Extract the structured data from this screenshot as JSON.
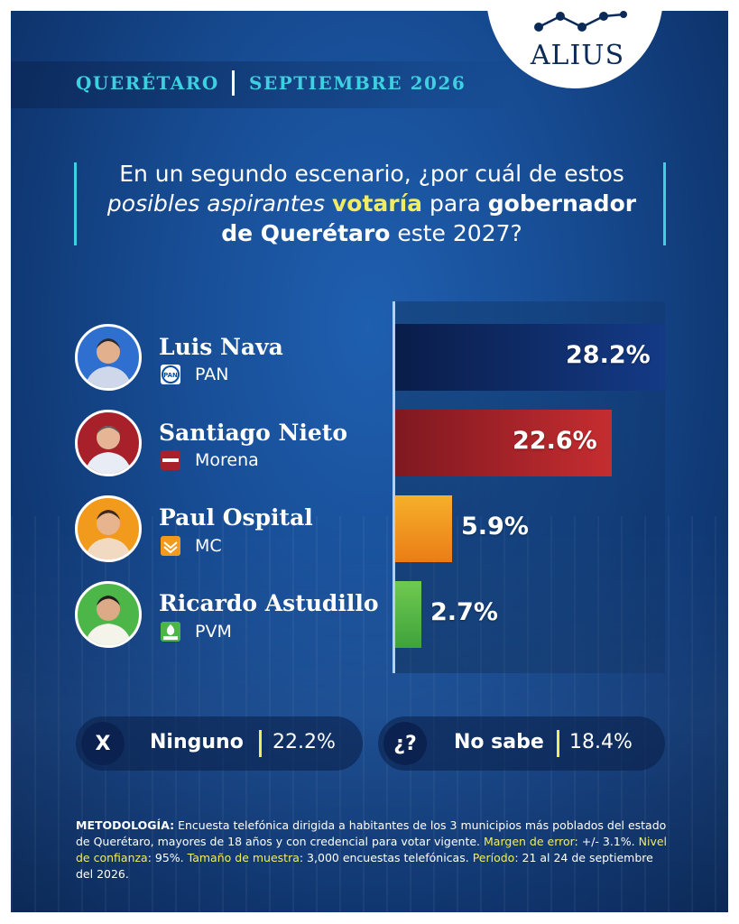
{
  "brand": {
    "logo_text": "ALIUS",
    "dot_color": "#0b2a58"
  },
  "header": {
    "region": "QUERÉTARO",
    "date": "SEPTIEMBRE 2026"
  },
  "question": {
    "p1": "En un segundo escenario, ¿por cuál de estos",
    "p2_italic": "posibles aspirantes",
    "p2_highlight": "votaría",
    "p2_rest": "para",
    "p2_bold": "gobernador",
    "p3_bold": "de Querétaro",
    "p3_rest": "este 2027?"
  },
  "chart_data": {
    "type": "bar",
    "orientation": "horizontal",
    "categories": [
      "Luis Nava",
      "Santiago Nieto",
      "Paul Ospital",
      "Ricardo Astudillo"
    ],
    "parties": [
      "PAN",
      "Morena",
      "MC",
      "PVM"
    ],
    "values": [
      28.2,
      22.6,
      5.9,
      2.7
    ],
    "value_labels": [
      "28.2%",
      "22.6%",
      "5.9%",
      "2.7%"
    ],
    "colors": [
      "#0e2458",
      "#a8202a",
      "#f29a1c",
      "#4cb748"
    ],
    "scale_max_value": 28.2,
    "grid": false,
    "legend": "none"
  },
  "other_answers": [
    {
      "icon": "X",
      "label": "Ninguno",
      "value": "22.2%"
    },
    {
      "icon": "¿?",
      "label": "No sabe",
      "value": "18.4%"
    }
  ],
  "methodology": {
    "k1": "METODOLOGÍA:",
    "t1": "Encuesta telefónica dirigida a habitantes de los 3 municipios más poblados del estado de Querétaro, mayores de 18 años y con credencial para votar vigente.",
    "k2": "Margen de error",
    "t2": ": +/- 3.1%.",
    "k3": "Nivel de confianza",
    "t3": ": 95%.",
    "k4": "Tamaño de muestra",
    "t4": ": 3,000 encuestas telefónicas.",
    "k5": "Período",
    "t5": ": 21 al 24 de septiembre del 2026."
  }
}
